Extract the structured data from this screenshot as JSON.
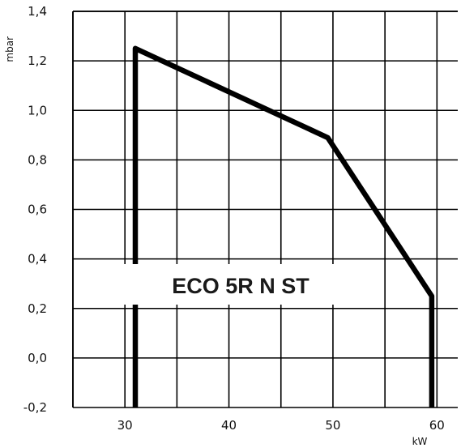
{
  "chart_data": {
    "type": "line",
    "xlabel": "kW",
    "ylabel": "mbar",
    "xlim": [
      25,
      62
    ],
    "ylim": [
      -0.2,
      1.4
    ],
    "x_ticks": [
      "30",
      "40",
      "50",
      "60"
    ],
    "y_ticks": [
      "1,4",
      "1,2",
      "1,0",
      "0,8",
      "0,6",
      "0,4",
      "0,2",
      "0,0",
      "-0,2"
    ],
    "grid": true,
    "series": [
      {
        "color": "#000000",
        "points": [
          {
            "x": 31,
            "y": -0.2
          },
          {
            "x": 31,
            "y": 1.25
          },
          {
            "x": 49.5,
            "y": 0.89
          },
          {
            "x": 59.5,
            "y": 0.25
          },
          {
            "x": 59.5,
            "y": -0.2
          }
        ]
      }
    ],
    "annotation": "ECO 5R N ST"
  }
}
